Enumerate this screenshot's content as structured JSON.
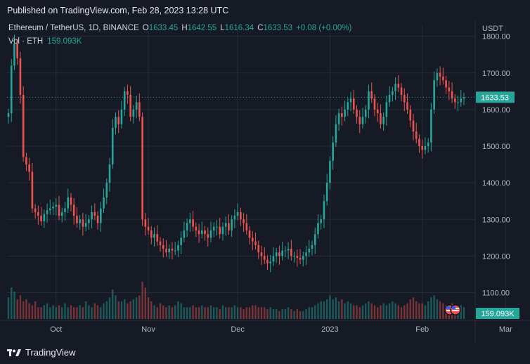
{
  "published": "Published on TradingView.com, Feb 28, 2023 13:28 UTC",
  "header": {
    "symbol": "Ethereum / TetherUS, 1D, BINANCE",
    "o_label": "O",
    "o_val": "1633.45",
    "h_label": "H",
    "h_val": "1642.55",
    "l_label": "L",
    "l_val": "1616.34",
    "c_label": "C",
    "c_val": "1633.53",
    "change": "+0.08 (+0.00%)",
    "vol_label": "Vol · ETH",
    "vol_val": "159.093K"
  },
  "currency": "USDT",
  "last_price_label": "1633.53",
  "volume_label": "159.093K",
  "footer": {
    "brand": "TradingView"
  },
  "colors": {
    "up": "#26a69a",
    "down": "#ef5350",
    "bg": "#161a25",
    "grid": "#262b38",
    "text": "#b2b5be"
  },
  "chart_data": {
    "type": "candlestick",
    "title": "Ethereum / TetherUS, 1D, BINANCE",
    "ylabel": "USDT",
    "ylim": [
      1030,
      1830
    ],
    "grid": true,
    "yticks": [
      1100,
      1200,
      1300,
      1400,
      1500,
      1600,
      1700,
      1800
    ],
    "ytick_labels": [
      "1100.00",
      "1200.00",
      "1300.00",
      "1400.00",
      "1500.00",
      "1600.00",
      "1700.00",
      "1800.00"
    ],
    "xticks": [
      {
        "label": "Oct",
        "index": 16
      },
      {
        "label": "Nov",
        "index": 47
      },
      {
        "label": "Dec",
        "index": 77
      },
      {
        "label": "2023",
        "index": 108
      },
      {
        "label": "Feb",
        "index": 139
      },
      {
        "label": "Mar",
        "index": 167
      }
    ],
    "last_price": 1633.53,
    "closes": [
      1590,
      1720,
      1780,
      1740,
      1640,
      1470,
      1450,
      1430,
      1330,
      1320,
      1310,
      1295,
      1315,
      1325,
      1330,
      1335,
      1340,
      1310,
      1320,
      1330,
      1360,
      1340,
      1310,
      1290,
      1300,
      1280,
      1290,
      1300,
      1320,
      1310,
      1290,
      1330,
      1360,
      1400,
      1450,
      1550,
      1580,
      1560,
      1600,
      1650,
      1640,
      1580,
      1600,
      1620,
      1580,
      1300,
      1280,
      1270,
      1250,
      1260,
      1240,
      1230,
      1220,
      1210,
      1220,
      1215,
      1215,
      1230,
      1250,
      1270,
      1290,
      1300,
      1280,
      1270,
      1260,
      1270,
      1260,
      1250,
      1270,
      1280,
      1280,
      1260,
      1280,
      1290,
      1270,
      1300,
      1310,
      1320,
      1300,
      1290,
      1270,
      1250,
      1240,
      1230,
      1210,
      1200,
      1190,
      1180,
      1185,
      1200,
      1210,
      1200,
      1215,
      1215,
      1220,
      1200,
      1200,
      1195,
      1190,
      1200,
      1210,
      1220,
      1230,
      1260,
      1290,
      1300,
      1350,
      1400,
      1460,
      1510,
      1560,
      1590,
      1580,
      1600,
      1620,
      1630,
      1600,
      1580,
      1560,
      1580,
      1600,
      1650,
      1630,
      1600,
      1590,
      1560,
      1580,
      1620,
      1640,
      1650,
      1670,
      1660,
      1640,
      1620,
      1600,
      1570,
      1540,
      1520,
      1500,
      1490,
      1500,
      1510,
      1600,
      1680,
      1700,
      1690,
      1680,
      1660,
      1650,
      1630,
      1620,
      1620,
      1630,
      1633.53
    ],
    "volumes": [
      0.55,
      0.8,
      0.7,
      0.5,
      0.6,
      0.45,
      0.5,
      0.4,
      0.35,
      0.45,
      0.3,
      0.3,
      0.35,
      0.4,
      0.3,
      0.35,
      0.3,
      0.35,
      0.3,
      0.4,
      0.3,
      0.35,
      0.3,
      0.3,
      0.35,
      0.3,
      0.45,
      0.35,
      0.3,
      0.4,
      0.35,
      0.3,
      0.4,
      0.45,
      0.55,
      0.75,
      0.6,
      0.45,
      0.45,
      0.5,
      0.4,
      0.45,
      0.5,
      0.55,
      0.6,
      0.95,
      0.8,
      0.55,
      0.45,
      0.35,
      0.3,
      0.4,
      0.35,
      0.3,
      0.35,
      0.3,
      0.35,
      0.45,
      0.4,
      0.3,
      0.3,
      0.3,
      0.35,
      0.3,
      0.3,
      0.35,
      0.3,
      0.3,
      0.35,
      0.3,
      0.3,
      0.25,
      0.35,
      0.3,
      0.3,
      0.3,
      0.35,
      0.3,
      0.3,
      0.25,
      0.3,
      0.3,
      0.35,
      0.35,
      0.3,
      0.3,
      0.3,
      0.25,
      0.3,
      0.25,
      0.25,
      0.2,
      0.25,
      0.25,
      0.3,
      0.25,
      0.2,
      0.25,
      0.2,
      0.2,
      0.25,
      0.3,
      0.3,
      0.35,
      0.4,
      0.45,
      0.45,
      0.5,
      0.6,
      0.5,
      0.55,
      0.45,
      0.5,
      0.4,
      0.45,
      0.4,
      0.35,
      0.35,
      0.3,
      0.35,
      0.4,
      0.45,
      0.4,
      0.35,
      0.3,
      0.35,
      0.4,
      0.35,
      0.4,
      0.45,
      0.4,
      0.35,
      0.3,
      0.35,
      0.4,
      0.5,
      0.55,
      0.45,
      0.4,
      0.4,
      0.35,
      0.45,
      0.55,
      0.6,
      0.5,
      0.45,
      0.4,
      0.35,
      0.35,
      0.4,
      0.35,
      0.3,
      0.35,
      0.3
    ]
  }
}
